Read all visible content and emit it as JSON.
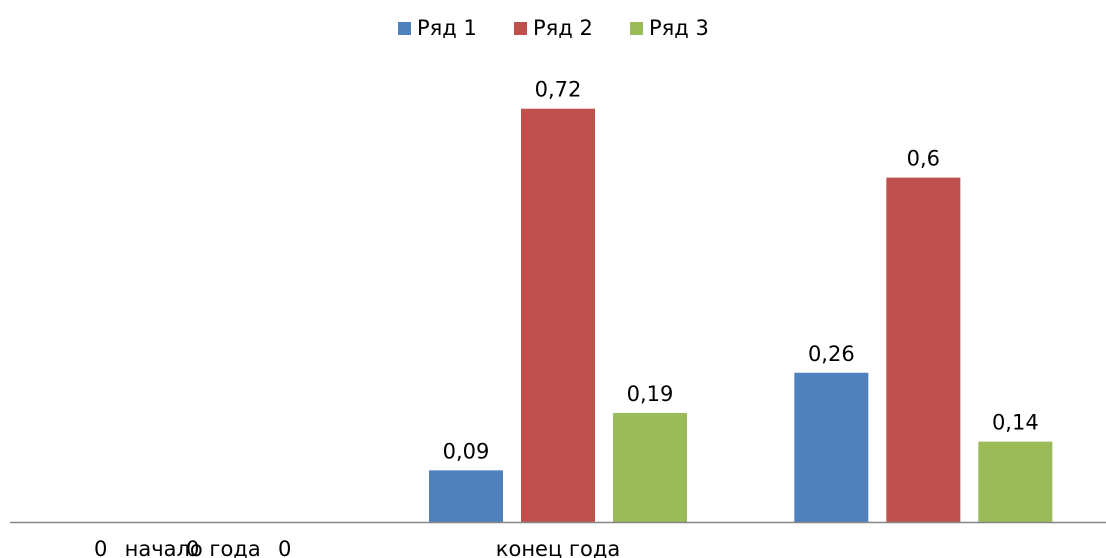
{
  "chart_data": {
    "type": "bar",
    "categories": [
      "начало года",
      "конец года",
      ""
    ],
    "series": [
      {
        "name": "Ряд 1",
        "color": "#4F81BD",
        "values": [
          0,
          0.09,
          0.26
        ],
        "labels": [
          "0",
          "0,09",
          "0,26"
        ]
      },
      {
        "name": "Ряд 2",
        "color": "#C0504D",
        "values": [
          0,
          0.72,
          0.6
        ],
        "labels": [
          "0",
          "0,72",
          "0,6"
        ]
      },
      {
        "name": "Ряд 3",
        "color": "#9BBB59",
        "values": [
          0,
          0.19,
          0.14
        ],
        "labels": [
          "0",
          "0,19",
          "0,14"
        ]
      }
    ],
    "ylim": [
      0,
      0.8
    ],
    "grid": false,
    "legend_position": "top-center",
    "axis_color": "#868686"
  }
}
